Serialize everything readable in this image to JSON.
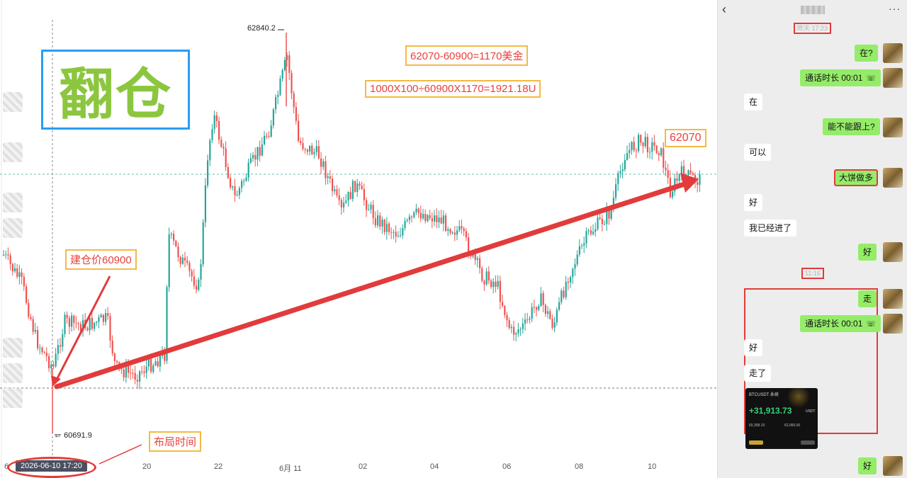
{
  "chart": {
    "title": "翻仓",
    "high_label": "62840.2",
    "low_label": "60691.9",
    "date_badge": "2026-06-10 17:20",
    "annotations": {
      "profit_calc": "62070-60900=1170美金",
      "return_calc": "1000X100÷60900X1170=1921.18U",
      "target_price": "62070",
      "entry_price": "建仓价60900",
      "setup_time": "布局时间"
    },
    "colors": {
      "up": "#26a69a",
      "down": "#ef5350",
      "arrow": "#e23b3b",
      "title": "#8cc63f",
      "title_border": "#2a9df4",
      "box_border": "#f5b942"
    }
  },
  "chart_data": {
    "type": "candlestick",
    "x_ticks": [
      "6",
      "20",
      "22",
      "6月 11",
      "02",
      "04",
      "06",
      "08",
      "10"
    ],
    "price_high": 62840.2,
    "price_low": 60691.9,
    "entry_price": 60900,
    "target_price": 62070
  },
  "chat": {
    "back_icon": "chevron-left-icon",
    "more_icon": "more-dots-icon",
    "time1": "昨天 17:23",
    "time2": "11:16",
    "messages": [
      {
        "from": "me",
        "text": "在?"
      },
      {
        "from": "me",
        "text": "通话时长 00:01"
      },
      {
        "from": "them",
        "text": "在"
      },
      {
        "from": "me",
        "text": "能不能跟上?"
      },
      {
        "from": "them",
        "text": "可以"
      },
      {
        "from": "me",
        "text": "大饼做多"
      },
      {
        "from": "them",
        "text": "好"
      },
      {
        "from": "them",
        "text": "我已经进了"
      },
      {
        "from": "me",
        "text": "好"
      },
      {
        "from": "me",
        "text": "走"
      },
      {
        "from": "me",
        "text": "通话时长 00:01"
      },
      {
        "from": "them",
        "text": "好"
      },
      {
        "from": "them",
        "text": "走了"
      },
      {
        "from": "me",
        "text": "好"
      }
    ],
    "card": {
      "title": "BTCUSDT 永续",
      "profit": "+31,913.73",
      "unit": "USDT",
      "entry": "60,358.10",
      "exit": "62,060.00"
    }
  }
}
